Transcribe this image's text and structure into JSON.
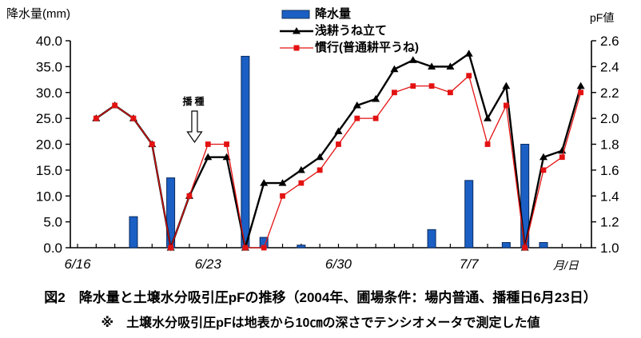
{
  "page": {
    "background": "#ffffff"
  },
  "chart_data": {
    "type": "bar+line combo",
    "title": "",
    "x_tick_dates": [
      "6/16",
      "6/17",
      "6/18",
      "6/19",
      "6/20",
      "6/21",
      "6/22",
      "6/23",
      "6/24",
      "6/25",
      "6/26",
      "6/27",
      "6/28",
      "6/29",
      "6/30",
      "7/1",
      "7/2",
      "7/3",
      "7/4",
      "7/5",
      "7/6",
      "7/7",
      "7/8",
      "7/9",
      "7/10",
      "7/11",
      "7/12",
      "7/13"
    ],
    "x_labeled_ticks": [
      "6/16",
      "6/23",
      "6/30",
      "7/7"
    ],
    "x_unit_label": "月/日",
    "left_axis": {
      "title": "降水量(mm)",
      "min": 0.0,
      "max": 40.0,
      "step": 5.0,
      "tick_format": "one_decimal"
    },
    "right_axis": {
      "title": "pF値",
      "min": 1.0,
      "max": 2.6,
      "step": 0.2,
      "tick_format": "one_decimal"
    },
    "grid": "off",
    "legend_position": "top-center",
    "rain_bars": {
      "name": "降水量",
      "axis": "left",
      "unit": "mm",
      "fill_color": "#1b5fc4",
      "border_color": "#0a2a5e",
      "values": [
        0,
        0,
        0,
        6,
        0,
        13.5,
        0,
        0,
        0,
        37,
        2,
        0,
        0.5,
        0,
        0,
        0,
        0,
        0,
        0,
        3.5,
        0,
        13,
        0,
        1,
        20,
        1,
        0,
        0
      ]
    },
    "series": [
      {
        "name": "浅耕うね立て",
        "axis": "right",
        "marker": "triangle",
        "color": "#000000",
        "values": [
          null,
          2.0,
          2.1,
          2.0,
          1.8,
          1.0,
          1.4,
          1.7,
          1.7,
          1.0,
          1.5,
          1.5,
          1.6,
          1.7,
          1.9,
          2.1,
          2.15,
          2.38,
          2.45,
          2.4,
          2.4,
          2.5,
          2.0,
          2.25,
          1.0,
          1.7,
          1.75,
          2.25
        ]
      },
      {
        "name": "慣行(普通耕平うね)",
        "axis": "right",
        "marker": "square",
        "color": "#e31212",
        "values": [
          null,
          2.0,
          2.1,
          2.0,
          1.8,
          1.0,
          1.4,
          1.8,
          1.8,
          1.0,
          1.0,
          1.4,
          1.5,
          1.6,
          1.8,
          2.0,
          2.0,
          2.2,
          2.25,
          2.25,
          2.2,
          2.33,
          1.8,
          2.1,
          1.0,
          1.6,
          1.7,
          2.2
        ]
      }
    ],
    "annotation": {
      "text": "播種",
      "between_dates": [
        "6/22",
        "6/23"
      ]
    }
  },
  "legend": {
    "items": [
      {
        "label": "降水量",
        "swatch": "blue-bar"
      },
      {
        "label": "浅耕うね立て",
        "swatch": "black-line-triangle"
      },
      {
        "label": "慣行(普通耕平うね)",
        "swatch": "red-line-square"
      }
    ]
  },
  "axes_titles": {
    "left": "降水量(mm)",
    "right": "pF値",
    "x_unit": "月/日"
  },
  "caption": {
    "line1": "図2　降水量と土壌水分吸引圧pFの推移（2004年、圃場条件：場内普通、播種日6月23日）",
    "line2": "※　土壌水分吸引圧pFは地表から10㎝の深さでテンシオメータで測定した値"
  }
}
